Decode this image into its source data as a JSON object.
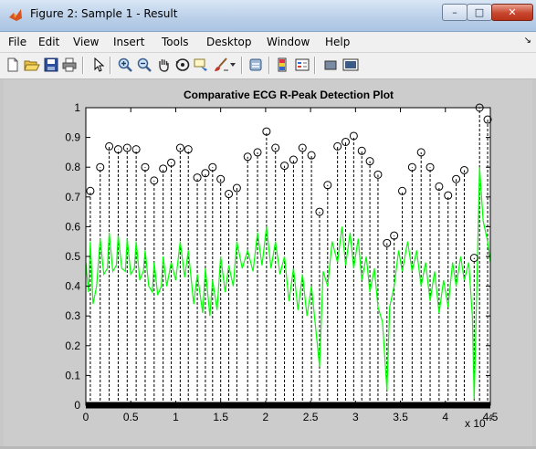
{
  "window": {
    "title": "Figure 2: Sample 1 - Result",
    "min_label": "–",
    "max_label": "□",
    "close_label": "✕"
  },
  "menu": {
    "items": [
      "File",
      "Edit",
      "View",
      "Insert",
      "Tools",
      "Desktop",
      "Window",
      "Help"
    ],
    "overflow": "↘"
  },
  "toolbar": {
    "icons": [
      "new-figure-icon",
      "open-file-icon",
      "save-icon",
      "print-icon",
      "pointer-icon",
      "zoom-in-icon",
      "zoom-out-icon",
      "pan-icon",
      "rotate-3d-icon",
      "data-cursor-icon",
      "brush-icon",
      "link-icon",
      "colorbar-icon",
      "legend-icon",
      "hide-plot-tools-icon",
      "show-plot-tools-icon"
    ]
  },
  "chart_data": {
    "type": "line",
    "title": "Comparative ECG R-Peak Detection Plot",
    "xlabel": "",
    "ylabel": "",
    "x_exponent_label": "x 10",
    "x_exponent": "4",
    "xlim": [
      0,
      45000
    ],
    "ylim": [
      0,
      1
    ],
    "x_ticks": [
      0,
      0.5,
      1,
      1.5,
      2,
      2.5,
      3,
      3.5,
      4,
      4.5
    ],
    "y_ticks": [
      0,
      0.1,
      0.2,
      0.3,
      0.4,
      0.5,
      0.6,
      0.7,
      0.8,
      0.9,
      1
    ],
    "grid": false,
    "colors": {
      "signal": "#00ff00",
      "stems": "#000000",
      "background": "#ffffff",
      "figure": "#cccccc"
    },
    "peaks": {
      "x": [
        500,
        1600,
        2600,
        3600,
        4600,
        5600,
        6600,
        7600,
        8600,
        9500,
        10500,
        11400,
        12400,
        13300,
        14100,
        15000,
        15900,
        16800,
        18000,
        19100,
        20100,
        21100,
        22100,
        23100,
        24100,
        25100,
        26000,
        26900,
        28000,
        28900,
        29800,
        30700,
        31600,
        32500,
        33500,
        34300,
        35200,
        36300,
        37300,
        38300,
        39300,
        40300,
        41200,
        42100,
        43200,
        43800,
        44700
      ],
      "y": [
        0.72,
        0.8,
        0.87,
        0.86,
        0.865,
        0.86,
        0.8,
        0.755,
        0.795,
        0.815,
        0.865,
        0.86,
        0.765,
        0.78,
        0.8,
        0.76,
        0.71,
        0.73,
        0.835,
        0.85,
        0.92,
        0.865,
        0.805,
        0.825,
        0.865,
        0.84,
        0.65,
        0.74,
        0.87,
        0.885,
        0.905,
        0.855,
        0.82,
        0.775,
        0.545,
        0.57,
        0.72,
        0.8,
        0.85,
        0.8,
        0.735,
        0.705,
        0.76,
        0.79,
        0.495,
        1.0,
        0.96
      ]
    },
    "signal": {
      "x": [
        0,
        300,
        500,
        800,
        1200,
        1600,
        2000,
        2400,
        2600,
        3000,
        3400,
        3600,
        4000,
        4400,
        4600,
        5000,
        5400,
        5600,
        6000,
        6400,
        6600,
        7000,
        7400,
        7600,
        8000,
        8400,
        8600,
        9000,
        9500,
        10000,
        10500,
        11000,
        11400,
        12000,
        12400,
        13000,
        13300,
        13800,
        14100,
        14600,
        15000,
        15500,
        15900,
        16400,
        16800,
        17400,
        18000,
        18600,
        19100,
        19600,
        20100,
        20600,
        21100,
        21600,
        22100,
        22600,
        23100,
        23600,
        24100,
        24600,
        25100,
        25600,
        26000,
        26400,
        26900,
        27400,
        28000,
        28500,
        28900,
        29400,
        29800,
        30300,
        30700,
        31200,
        31600,
        32100,
        32500,
        33000,
        33500,
        33800,
        34300,
        34800,
        35200,
        35800,
        36300,
        36800,
        37300,
        37800,
        38300,
        38800,
        39300,
        39800,
        40300,
        40800,
        41200,
        41700,
        42100,
        42600,
        43000,
        43200,
        43500,
        43800,
        44200,
        44700,
        45000
      ],
      "y": [
        0.48,
        0.38,
        0.55,
        0.34,
        0.4,
        0.56,
        0.44,
        0.46,
        0.58,
        0.45,
        0.47,
        0.57,
        0.46,
        0.45,
        0.56,
        0.44,
        0.46,
        0.55,
        0.42,
        0.45,
        0.52,
        0.4,
        0.38,
        0.48,
        0.37,
        0.4,
        0.5,
        0.4,
        0.48,
        0.42,
        0.55,
        0.43,
        0.52,
        0.34,
        0.44,
        0.31,
        0.46,
        0.3,
        0.42,
        0.32,
        0.5,
        0.38,
        0.47,
        0.4,
        0.55,
        0.46,
        0.52,
        0.45,
        0.58,
        0.47,
        0.6,
        0.46,
        0.55,
        0.44,
        0.5,
        0.35,
        0.46,
        0.32,
        0.44,
        0.3,
        0.4,
        0.25,
        0.13,
        0.45,
        0.4,
        0.55,
        0.48,
        0.6,
        0.47,
        0.58,
        0.46,
        0.56,
        0.42,
        0.5,
        0.38,
        0.46,
        0.33,
        0.28,
        0.05,
        0.33,
        0.4,
        0.52,
        0.45,
        0.55,
        0.45,
        0.52,
        0.4,
        0.48,
        0.35,
        0.45,
        0.31,
        0.42,
        0.33,
        0.48,
        0.4,
        0.5,
        0.42,
        0.48,
        0.3,
        0.02,
        0.4,
        0.8,
        0.62,
        0.55,
        0.48
      ]
    }
  }
}
